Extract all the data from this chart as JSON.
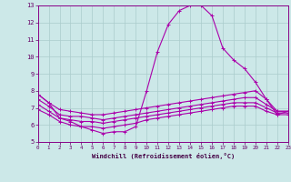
{
  "xlabel": "Windchill (Refroidissement éolien,°C)",
  "background_color": "#cce8e8",
  "grid_color": "#aacccc",
  "line_color": "#aa00aa",
  "xlim": [
    0,
    23
  ],
  "ylim": [
    5,
    13
  ],
  "xticks": [
    0,
    1,
    2,
    3,
    4,
    5,
    6,
    7,
    8,
    9,
    10,
    11,
    12,
    13,
    14,
    15,
    16,
    17,
    18,
    19,
    20,
    21,
    22,
    23
  ],
  "yticks": [
    5,
    6,
    7,
    8,
    9,
    10,
    11,
    12,
    13
  ],
  "line1_x": [
    0,
    1,
    2,
    3,
    4,
    5,
    6,
    7,
    8,
    9,
    10,
    11,
    12,
    13,
    14,
    15,
    16,
    17,
    18,
    19,
    20,
    21,
    22,
    23
  ],
  "line1_y": [
    7.8,
    7.3,
    6.4,
    6.2,
    5.9,
    5.7,
    5.5,
    5.6,
    5.6,
    5.9,
    8.0,
    10.3,
    11.9,
    12.7,
    13.0,
    13.0,
    12.4,
    10.5,
    9.8,
    9.3,
    8.5,
    7.5,
    6.6,
    6.8
  ],
  "line2_x": [
    0,
    1,
    2,
    3,
    4,
    5,
    6,
    7,
    8,
    9,
    10,
    11,
    12,
    13,
    14,
    15,
    16,
    17,
    18,
    19,
    20,
    21,
    22,
    23
  ],
  "line2_y": [
    7.8,
    7.3,
    6.9,
    6.8,
    6.7,
    6.6,
    6.6,
    6.7,
    6.8,
    6.9,
    7.0,
    7.1,
    7.2,
    7.3,
    7.4,
    7.5,
    7.6,
    7.7,
    7.8,
    7.9,
    8.0,
    7.5,
    6.8,
    6.8
  ],
  "line3_x": [
    0,
    1,
    2,
    3,
    4,
    5,
    6,
    7,
    8,
    9,
    10,
    11,
    12,
    13,
    14,
    15,
    16,
    17,
    18,
    19,
    20,
    21,
    22,
    23
  ],
  "line3_y": [
    7.5,
    7.1,
    6.6,
    6.5,
    6.5,
    6.4,
    6.3,
    6.4,
    6.5,
    6.6,
    6.7,
    6.8,
    6.9,
    7.0,
    7.1,
    7.2,
    7.3,
    7.4,
    7.5,
    7.6,
    7.6,
    7.2,
    6.8,
    6.8
  ],
  "line4_x": [
    0,
    1,
    2,
    3,
    4,
    5,
    6,
    7,
    8,
    9,
    10,
    11,
    12,
    13,
    14,
    15,
    16,
    17,
    18,
    19,
    20,
    21,
    22,
    23
  ],
  "line4_y": [
    7.2,
    6.8,
    6.4,
    6.3,
    6.2,
    6.2,
    6.1,
    6.2,
    6.3,
    6.4,
    6.5,
    6.6,
    6.7,
    6.8,
    6.9,
    7.0,
    7.1,
    7.2,
    7.3,
    7.3,
    7.3,
    7.0,
    6.7,
    6.7
  ],
  "line5_x": [
    0,
    1,
    2,
    3,
    4,
    5,
    6,
    7,
    8,
    9,
    10,
    11,
    12,
    13,
    14,
    15,
    16,
    17,
    18,
    19,
    20,
    21,
    22,
    23
  ],
  "line5_y": [
    6.9,
    6.6,
    6.2,
    6.0,
    5.9,
    5.9,
    5.8,
    5.9,
    6.0,
    6.1,
    6.3,
    6.4,
    6.5,
    6.6,
    6.7,
    6.8,
    6.9,
    7.0,
    7.1,
    7.1,
    7.1,
    6.8,
    6.6,
    6.6
  ]
}
